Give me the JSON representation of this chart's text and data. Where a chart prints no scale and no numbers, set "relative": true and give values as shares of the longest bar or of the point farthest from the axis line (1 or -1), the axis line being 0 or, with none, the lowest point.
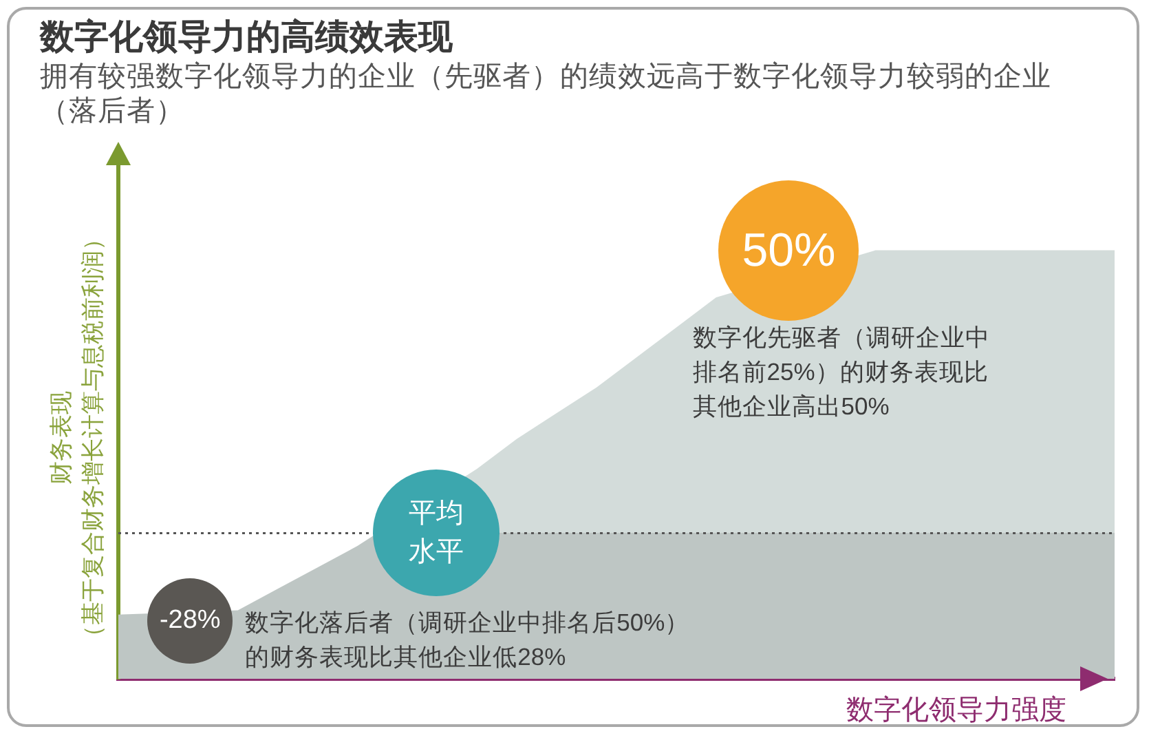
{
  "chart_data": {
    "type": "area",
    "title": "数字化领导力的高绩效表现",
    "subtitle": "拥有较强数字化领导力的企业（先驱者）的绩效远高于数字化领导力较弱的企业（落后者）",
    "xlabel": "数字化领导力强度",
    "ylabel": "财务表现（基于复合财务增长计算与息税前利润）",
    "relative": true,
    "marker": "none",
    "categories": [
      null,
      null,
      null,
      null,
      null,
      null,
      null,
      null,
      null,
      null,
      null,
      null,
      null,
      null,
      null,
      null,
      null,
      null,
      null,
      null,
      null,
      null,
      null,
      null,
      null,
      null
    ],
    "series": [
      {
        "color": "#d3dcda",
        "values": [
          0.15,
          null,
          null,
          0.16,
          0.21,
          0.26,
          0.31,
          null,
          null,
          0.49,
          0.56,
          0.62,
          0.68,
          0.75,
          0.82,
          0.89,
          null,
          null,
          null,
          1,
          1,
          1,
          1,
          1,
          1,
          1
        ]
      }
    ],
    "ref_lines": [
      {
        "axis": "y",
        "value": 0.34,
        "label": "平均水平",
        "color": "#555555",
        "line_style": "dotted"
      }
    ],
    "annotations": [
      {
        "text": "-28%",
        "y": 0.15
      },
      "数字化落后者（调研企业中排名后50%）的财务表现比其他企业低28%",
      "50%",
      "数字化先驱者（调研企业中排名前25%）的财务表现比其他企业高出50%"
    ]
  }
}
